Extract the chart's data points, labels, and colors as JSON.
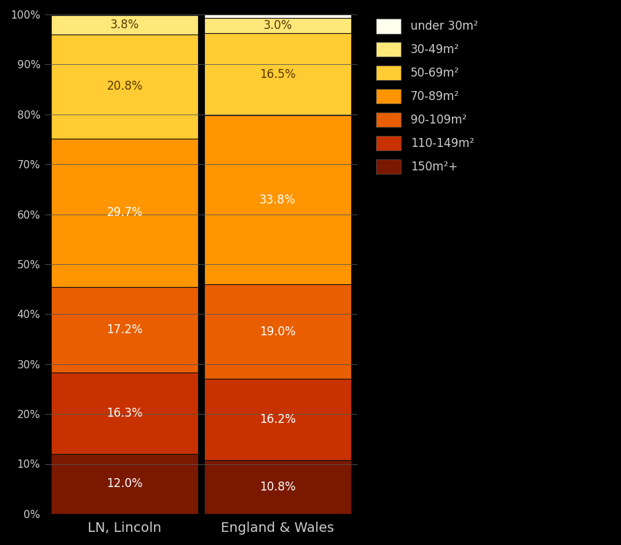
{
  "categories": [
    "LN, Lincoln",
    "England & Wales"
  ],
  "segments": [
    {
      "label": "150m²+",
      "color": "#7a1800",
      "values": [
        12.0,
        10.8
      ]
    },
    {
      "label": "110-149m²",
      "color": "#c83200",
      "values": [
        16.3,
        16.2
      ]
    },
    {
      "label": "90-109m²",
      "color": "#e85e00",
      "values": [
        17.2,
        19.0
      ]
    },
    {
      "label": "70-89m²",
      "color": "#ff9500",
      "values": [
        29.7,
        33.8
      ]
    },
    {
      "label": "50-69m²",
      "color": "#ffcc33",
      "values": [
        20.8,
        16.5
      ]
    },
    {
      "label": "30-49m²",
      "color": "#ffe87a",
      "values": [
        3.8,
        3.0
      ]
    },
    {
      "label": "under 30m²",
      "color": "#fffff0",
      "values": [
        0.2,
        0.7
      ]
    }
  ],
  "legend_segments": [
    {
      "label": "under 30m²",
      "color": "#fffff0"
    },
    {
      "label": "30-49m²",
      "color": "#ffe87a"
    },
    {
      "label": "50-69m²",
      "color": "#ffcc33"
    },
    {
      "label": "70-89m²",
      "color": "#ff9500"
    },
    {
      "label": "90-109m²",
      "color": "#e85e00"
    },
    {
      "label": "110-149m²",
      "color": "#c83200"
    },
    {
      "label": "150m²+",
      "color": "#7a1800"
    }
  ],
  "background_color": "#000000",
  "text_color": "#cccccc",
  "label_color_dark": "#5a3a00",
  "label_color_light": "#ffffff",
  "bar_edge_color": "#111111",
  "grid_color": "#555555",
  "ytick_labels": [
    "0%",
    "10%",
    "20%",
    "30%",
    "40%",
    "50%",
    "60%",
    "70%",
    "80%",
    "90%",
    "100%"
  ],
  "ytick_values": [
    0,
    10,
    20,
    30,
    40,
    50,
    60,
    70,
    80,
    90,
    100
  ],
  "x_positions": [
    0.25,
    0.75
  ],
  "bar_width": 0.48,
  "figsize": [
    9.0,
    7.9
  ],
  "dpi": 100
}
